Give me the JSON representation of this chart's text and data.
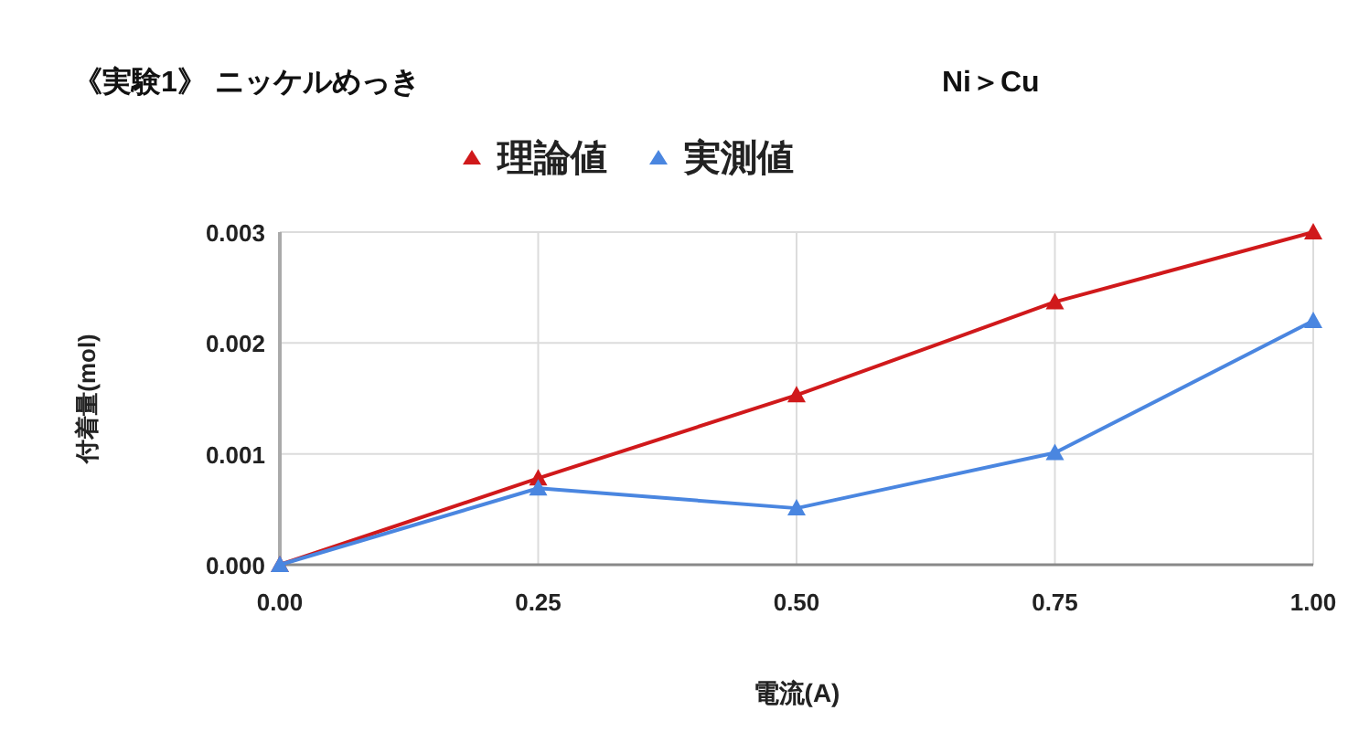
{
  "chart_data": {
    "type": "line",
    "title": "《実験1》 ニッケルめっき",
    "annotations": [
      "Ni＞Cu"
    ],
    "xlabel": "電流(A)",
    "ylabel": "付着量(mol)",
    "x": [
      0,
      0.25,
      0.5,
      0.75,
      1
    ],
    "series": [
      {
        "name": "理論値",
        "color": "#d0191b",
        "values": [
          0,
          0.00078,
          0.00153,
          0.00237,
          0.003
        ]
      },
      {
        "name": "実測値",
        "color": "#4a86e0",
        "values": [
          0,
          0.00069,
          0.00051,
          0.00101,
          0.0022
        ]
      }
    ],
    "xlim": [
      0,
      1
    ],
    "xticks": [
      {
        "value": 0,
        "label": "0.00"
      },
      {
        "value": 0.25,
        "label": "0.25"
      },
      {
        "value": 0.5,
        "label": "0.50"
      },
      {
        "value": 0.75,
        "label": "0.75"
      },
      {
        "value": 1,
        "label": "1.00"
      }
    ],
    "ylim": [
      0,
      0.003
    ],
    "yticks": [
      {
        "value": 0,
        "label": "0.000"
      },
      {
        "value": 0.001,
        "label": "0.001"
      },
      {
        "value": 0.002,
        "label": "0.002"
      },
      {
        "value": 0.003,
        "label": "0.003"
      }
    ],
    "grid": true,
    "legend": "top",
    "marker": "triangle",
    "line_style": "solid"
  }
}
